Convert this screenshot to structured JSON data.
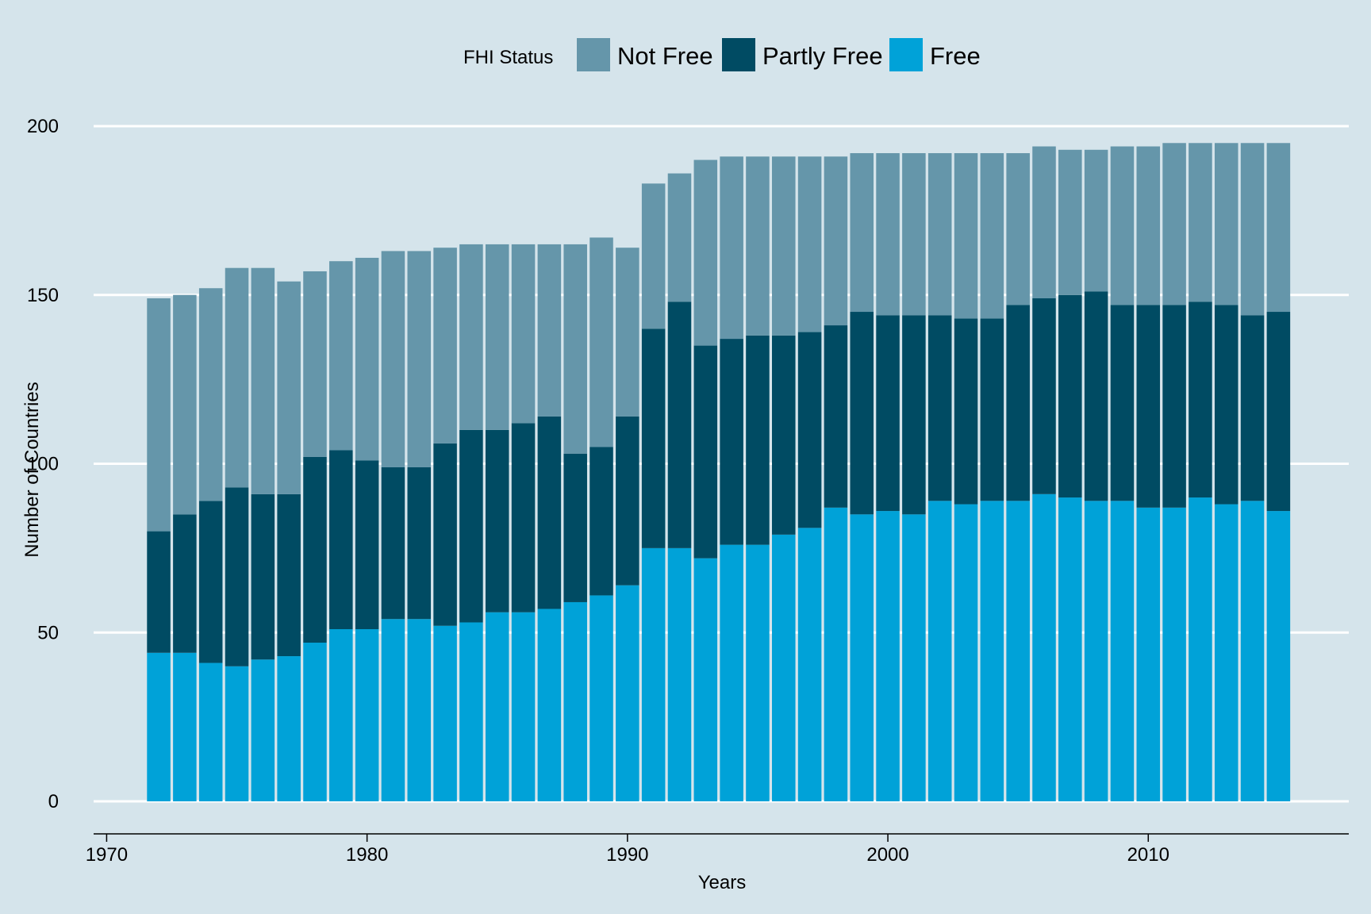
{
  "chart_data": {
    "type": "bar",
    "stacked": true,
    "legend": {
      "title": "FHI Status",
      "position": "top",
      "entries": [
        "Not Free",
        "Partly Free",
        "Free"
      ]
    },
    "xlabel": "Years",
    "ylabel": "Number of Countries",
    "xlim": [
      1969.5,
      2017.7
    ],
    "ylim": [
      0,
      200
    ],
    "xticks": [
      1970,
      1980,
      1990,
      2000,
      2010
    ],
    "yticks": [
      0,
      50,
      100,
      150,
      200
    ],
    "grid": "horizontal",
    "colors": {
      "Not Free": "#6596aa",
      "Partly Free": "#004b63",
      "Free": "#00a2d8",
      "background": "#d5e4eb",
      "grid": "#ffffff"
    },
    "years": [
      1972,
      1973,
      1974,
      1975,
      1976,
      1977,
      1978,
      1979,
      1980,
      1981,
      1982,
      1983,
      1984,
      1985,
      1986,
      1987,
      1988,
      1989,
      1990,
      1991,
      1992,
      1993,
      1994,
      1995,
      1996,
      1997,
      1998,
      1999,
      2000,
      2001,
      2002,
      2003,
      2004,
      2005,
      2006,
      2007,
      2008,
      2009,
      2010,
      2011,
      2012,
      2013,
      2014,
      2015
    ],
    "series": [
      {
        "name": "Free",
        "values": [
          44,
          44,
          41,
          40,
          42,
          43,
          47,
          51,
          51,
          54,
          54,
          52,
          53,
          56,
          56,
          57,
          59,
          61,
          64,
          75,
          75,
          72,
          76,
          76,
          79,
          81,
          87,
          85,
          86,
          85,
          89,
          88,
          89,
          89,
          91,
          90,
          89,
          89,
          87,
          87,
          90,
          88,
          89,
          86
        ]
      },
      {
        "name": "Partly Free",
        "values": [
          36,
          41,
          48,
          53,
          49,
          48,
          55,
          53,
          50,
          45,
          45,
          54,
          57,
          54,
          56,
          57,
          44,
          44,
          50,
          65,
          73,
          63,
          61,
          62,
          59,
          58,
          54,
          60,
          58,
          59,
          55,
          55,
          54,
          58,
          58,
          60,
          62,
          58,
          60,
          60,
          58,
          59,
          55,
          59
        ]
      },
      {
        "name": "Not Free",
        "values": [
          69,
          65,
          63,
          65,
          67,
          63,
          55,
          56,
          60,
          64,
          64,
          58,
          55,
          55,
          53,
          51,
          62,
          62,
          50,
          43,
          38,
          55,
          54,
          53,
          53,
          52,
          50,
          47,
          48,
          48,
          48,
          49,
          49,
          45,
          45,
          43,
          42,
          47,
          47,
          48,
          47,
          48,
          51,
          50
        ]
      }
    ]
  }
}
